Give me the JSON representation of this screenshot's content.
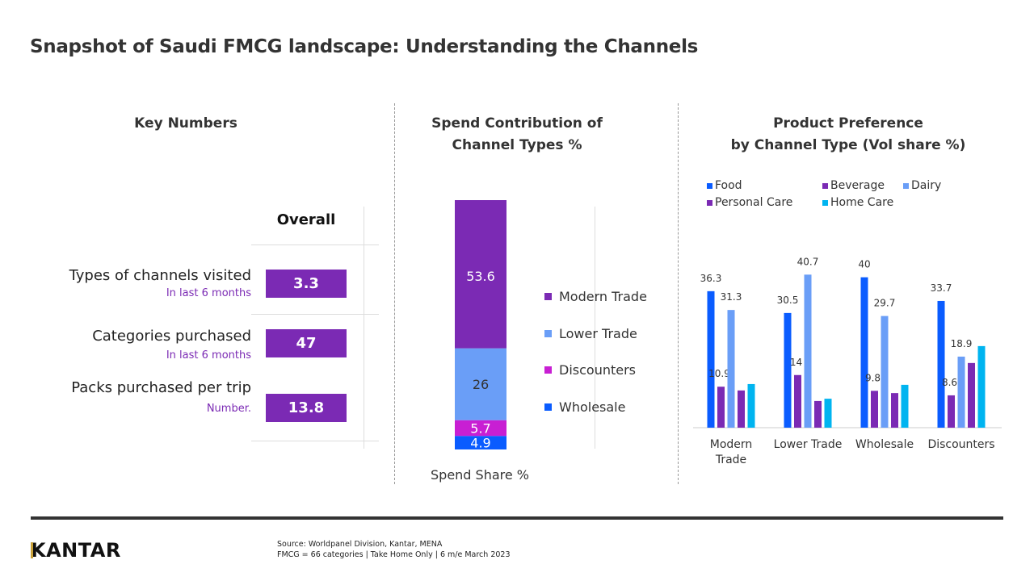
{
  "title": "Snapshot of Saudi FMCG landscape: Understanding the Channels",
  "key_numbers": {
    "heading": "Key Numbers",
    "column_header": "Overall",
    "rows": [
      {
        "label": "Types of channels visited",
        "sub": "In last 6 months",
        "value": "3.3"
      },
      {
        "label": "Categories purchased",
        "sub": "In last 6 months",
        "value": "47"
      },
      {
        "label": "Packs purchased per trip",
        "sub": "Number.",
        "value": "13.8"
      }
    ],
    "accent": "#7b2ab4"
  },
  "chart_data": [
    {
      "type": "bar",
      "stacked": true,
      "title": "Spend Contribution of Channel Types %",
      "xlabel": "Spend Share %",
      "series": [
        {
          "name": "Wholesale",
          "values": [
            4.9
          ],
          "color": "#0a5cff",
          "label_color": "#ffffff"
        },
        {
          "name": "Discounters",
          "values": [
            5.7
          ],
          "color": "#c81fd3",
          "label_color": "#ffffff"
        },
        {
          "name": "Lower Trade",
          "values": [
            26
          ],
          "color": "#6a9ef7",
          "label_color": "#333333"
        },
        {
          "name": "Modern Trade",
          "values": [
            53.6
          ],
          "color": "#7b2ab4",
          "label_color": "#ffffff"
        }
      ],
      "legend_order": [
        "Modern Trade",
        "Lower Trade",
        "Discounters",
        "Wholesale"
      ],
      "legend": "right"
    },
    {
      "type": "bar",
      "title": "Product Preference by Channel Type (Vol share %)",
      "title_lines": [
        "Product Preference",
        "by Channel Type (Vol share %)"
      ],
      "categories": [
        "Modern Trade",
        "Lower Trade",
        "Wholesale",
        "Discounters"
      ],
      "category_lines": [
        [
          "Modern",
          "Trade"
        ],
        [
          "Lower Trade"
        ],
        [
          "Wholesale"
        ],
        [
          "Discounters"
        ]
      ],
      "series": [
        {
          "name": "Food",
          "color": "#0a5cff",
          "values": [
            36.3,
            30.5,
            40,
            33.7
          ],
          "labels": [
            "36.3",
            "30.5",
            "40",
            "33.7"
          ]
        },
        {
          "name": "Beverage",
          "color": "#7b2ab4",
          "values": [
            10.9,
            14,
            9.8,
            8.6
          ],
          "labels": [
            "10.9",
            "14",
            "9.8",
            "8.6"
          ]
        },
        {
          "name": "Dairy",
          "color": "#6a9ef7",
          "values": [
            31.3,
            40.7,
            29.7,
            18.9
          ],
          "labels": [
            "31.3",
            "40.7",
            "29.7",
            "18.9"
          ]
        },
        {
          "name": "Personal Care",
          "color": "#7b2ab4",
          "values": [
            9.9,
            7.1,
            9.2,
            17.2
          ],
          "labels": [
            null,
            null,
            null,
            null
          ]
        },
        {
          "name": "Home Care",
          "color": "#00b4f0",
          "values": [
            11.6,
            7.7,
            11.4,
            21.7
          ],
          "labels": [
            null,
            null,
            null,
            null
          ]
        }
      ],
      "legend": "top",
      "grid": false
    }
  ],
  "footer": {
    "logo": "KANTAR",
    "source_line1": "Source: Worldpanel Division, Kantar, MENA",
    "source_line2": "FMCG = 66 categories | Take Home Only | 6 m/e March 2023"
  }
}
